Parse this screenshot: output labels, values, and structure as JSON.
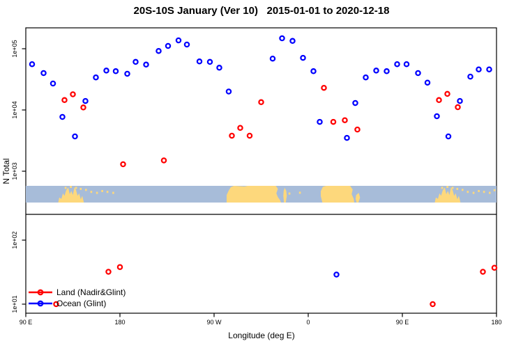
{
  "title": "20S-10S January (Ver 10)   2015-01-01 to 2020-12-18",
  "axes": {
    "x_label": "Longitude (deg E)",
    "y_label": "N Total",
    "x_ticks": [
      {
        "lon": 90,
        "label": "90 E"
      },
      {
        "lon": 180,
        "label": "180"
      },
      {
        "lon": 270,
        "label": "90 W"
      },
      {
        "lon": 360,
        "label": "0"
      },
      {
        "lon": 450,
        "label": "90 E"
      },
      {
        "lon": 540,
        "label": "180"
      }
    ],
    "y_ticks_upper": [
      {
        "value": 100000,
        "label": "1e+05"
      },
      {
        "value": 10000,
        "label": "1e+04"
      },
      {
        "value": 1000,
        "label": "1e+03"
      }
    ],
    "y_ticks_lower": [
      {
        "value": 100,
        "label": "1e+02"
      },
      {
        "value": 10,
        "label": "1e+01"
      }
    ]
  },
  "legend": {
    "items": [
      {
        "label": "Land (Nadir&Glint)",
        "color": "#FF0000"
      },
      {
        "label": "Ocean (Glint)",
        "color": "#0000FF"
      }
    ]
  },
  "chart_data": {
    "type": "scatter",
    "title": "20S-10S January (Ver 10)   2015-01-01 to 2020-12-18",
    "xlabel": "Longitude (deg E)",
    "ylabel": "N Total",
    "x_range_deg_e": [
      90,
      540
    ],
    "y_scale": "log10",
    "upper_panel_value_range": [
      630,
      220000
    ],
    "lower_panel_value_range": [
      7,
      250
    ],
    "series": [
      {
        "name": "Land (Nadir&Glint)",
        "color": "#FF0000",
        "points": [
          [
            127,
            14500
          ],
          [
            135,
            18000
          ],
          [
            145,
            11000
          ],
          [
            183,
            1300
          ],
          [
            222,
            1500
          ],
          [
            287,
            3800
          ],
          [
            295,
            5100
          ],
          [
            304,
            3800
          ],
          [
            315,
            13400
          ],
          [
            375,
            23000
          ],
          [
            384,
            6400
          ],
          [
            395,
            6800
          ],
          [
            407,
            4800
          ],
          [
            485,
            14500
          ],
          [
            493,
            18300
          ],
          [
            503,
            11100
          ],
          [
            119,
            10
          ],
          [
            169,
            32
          ],
          [
            180,
            38
          ],
          [
            479,
            10
          ],
          [
            527,
            32
          ],
          [
            538,
            37
          ]
        ]
      },
      {
        "name": "Ocean (Glint)",
        "color": "#0000FF",
        "points": [
          [
            96,
            56000
          ],
          [
            107,
            40000
          ],
          [
            116,
            27000
          ],
          [
            125,
            7700
          ],
          [
            137,
            3700
          ],
          [
            147,
            14000
          ],
          [
            157,
            34000
          ],
          [
            167,
            44000
          ],
          [
            176,
            43000
          ],
          [
            187,
            39000
          ],
          [
            195,
            61000
          ],
          [
            205,
            55000
          ],
          [
            217,
            92000
          ],
          [
            226,
            111000
          ],
          [
            236,
            137000
          ],
          [
            244,
            117000
          ],
          [
            256,
            62000
          ],
          [
            266,
            61000
          ],
          [
            275,
            49000
          ],
          [
            284,
            20000
          ],
          [
            326,
            69000
          ],
          [
            335,
            148000
          ],
          [
            345,
            134000
          ],
          [
            355,
            71000
          ],
          [
            365,
            43000
          ],
          [
            371,
            6400
          ],
          [
            397,
            3500
          ],
          [
            405,
            13000
          ],
          [
            415,
            34000
          ],
          [
            425,
            44000
          ],
          [
            435,
            43000
          ],
          [
            445,
            56000
          ],
          [
            454,
            56000
          ],
          [
            465,
            40000
          ],
          [
            474,
            28000
          ],
          [
            483,
            7900
          ],
          [
            494,
            3700
          ],
          [
            505,
            14000
          ],
          [
            515,
            35000
          ],
          [
            523,
            46000
          ],
          [
            533,
            46000
          ],
          [
            387,
            29
          ]
        ]
      }
    ]
  },
  "map_band": {
    "description": "World coastline strip for the 20S-10S latitude band, longitude 90E wrapping to 180",
    "ocean_color": "#A7BCD9",
    "land_color": "#FDD87C",
    "land_polygons": [
      [
        [
          121,
          1
        ],
        [
          122,
          0.7
        ],
        [
          124,
          0.78
        ],
        [
          125.5,
          0.45
        ],
        [
          127,
          0.6
        ],
        [
          128.5,
          0.28
        ],
        [
          130.5,
          0.1
        ],
        [
          132,
          0.5
        ],
        [
          133.5,
          0.3
        ],
        [
          135,
          0.55
        ],
        [
          136.5,
          0.08
        ],
        [
          138,
          0.25
        ],
        [
          139.5,
          0.6
        ],
        [
          141,
          0.45
        ],
        [
          142.5,
          0.8
        ],
        [
          144,
          0.6
        ],
        [
          145.5,
          1
        ]
      ],
      [
        [
          282,
          1
        ],
        [
          282,
          0.55
        ],
        [
          284,
          0.28
        ],
        [
          286,
          0.08
        ],
        [
          289,
          0
        ],
        [
          299,
          0.04
        ],
        [
          302,
          0
        ],
        [
          329,
          0
        ],
        [
          331,
          0.18
        ],
        [
          329.5,
          0.45
        ],
        [
          331,
          0.68
        ],
        [
          333,
          0.85
        ],
        [
          334,
          1
        ]
      ],
      [
        [
          336.5,
          0.3
        ],
        [
          337.5,
          0.12
        ],
        [
          339,
          0.3
        ],
        [
          339.5,
          0.6
        ],
        [
          338.5,
          1
        ],
        [
          336.8,
          1
        ],
        [
          336.2,
          0.6
        ]
      ],
      [
        [
          372,
          0.32
        ],
        [
          374,
          0.06
        ],
        [
          377,
          0
        ],
        [
          400,
          0
        ],
        [
          402.5,
          0.22
        ],
        [
          401.5,
          0.5
        ],
        [
          403.5,
          0.78
        ],
        [
          404,
          1
        ],
        [
          373.5,
          1
        ],
        [
          372,
          0.62
        ]
      ],
      [
        [
          405.8,
          0.55
        ],
        [
          408.3,
          0.42
        ],
        [
          409.5,
          0.7
        ],
        [
          408,
          1
        ],
        [
          406.3,
          1
        ],
        [
          405.3,
          0.78
        ]
      ],
      [
        [
          481,
          1
        ],
        [
          482,
          0.7
        ],
        [
          484,
          0.78
        ],
        [
          485.5,
          0.45
        ],
        [
          487,
          0.6
        ],
        [
          488.5,
          0.28
        ],
        [
          490.5,
          0.1
        ],
        [
          492,
          0.5
        ],
        [
          493.5,
          0.3
        ],
        [
          495,
          0.55
        ],
        [
          496.5,
          0.08
        ],
        [
          498,
          0.25
        ],
        [
          499.5,
          0.6
        ],
        [
          501,
          0.45
        ],
        [
          502.5,
          0.8
        ],
        [
          504,
          0.6
        ],
        [
          505.5,
          1
        ]
      ]
    ],
    "land_specks": [
      [
        128,
        0.06
      ],
      [
        133,
        0.0
      ],
      [
        138,
        0.06
      ],
      [
        142.5,
        0.12
      ],
      [
        147.5,
        0.18
      ],
      [
        152.5,
        0.3
      ],
      [
        158,
        0.36
      ],
      [
        163,
        0.25
      ],
      [
        168,
        0.3
      ],
      [
        173.5,
        0.36
      ],
      [
        342,
        0.4
      ],
      [
        352,
        0.35
      ],
      [
        488,
        0.06
      ],
      [
        493,
        0.0
      ],
      [
        498,
        0.06
      ],
      [
        502.5,
        0.12
      ],
      [
        507.5,
        0.18
      ],
      [
        512.5,
        0.3
      ],
      [
        518,
        0.36
      ],
      [
        523,
        0.25
      ],
      [
        528,
        0.3
      ],
      [
        533.5,
        0.36
      ],
      [
        538,
        0.2
      ]
    ]
  }
}
